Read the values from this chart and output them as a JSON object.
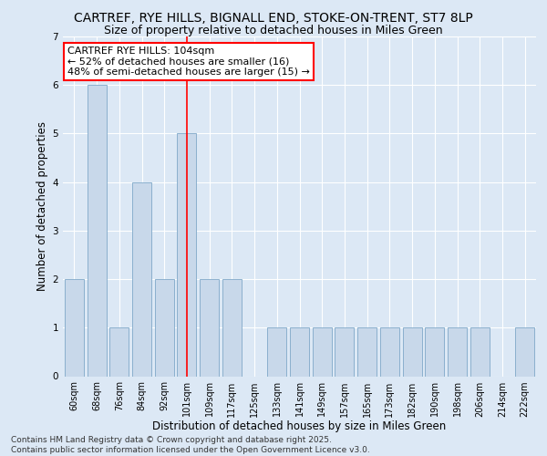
{
  "title_line1": "CARTREF, RYE HILLS, BIGNALL END, STOKE-ON-TRENT, ST7 8LP",
  "title_line2": "Size of property relative to detached houses in Miles Green",
  "xlabel": "Distribution of detached houses by size in Miles Green",
  "ylabel": "Number of detached properties",
  "categories": [
    "60sqm",
    "68sqm",
    "76sqm",
    "84sqm",
    "92sqm",
    "101sqm",
    "109sqm",
    "117sqm",
    "125sqm",
    "133sqm",
    "141sqm",
    "149sqm",
    "157sqm",
    "165sqm",
    "173sqm",
    "182sqm",
    "190sqm",
    "198sqm",
    "206sqm",
    "214sqm",
    "222sqm"
  ],
  "values": [
    2,
    6,
    1,
    4,
    2,
    5,
    2,
    2,
    0,
    1,
    1,
    1,
    1,
    1,
    1,
    1,
    1,
    1,
    1,
    0,
    1
  ],
  "bar_color": "#c8d8ea",
  "bar_edge_color": "#7fa8c8",
  "red_line_index": 5,
  "annotation_text": "CARTREF RYE HILLS: 104sqm\n← 52% of detached houses are smaller (16)\n48% of semi-detached houses are larger (15) →",
  "annotation_box_color": "white",
  "annotation_box_edge_color": "red",
  "ylim": [
    0,
    7
  ],
  "yticks": [
    0,
    1,
    2,
    3,
    4,
    5,
    6,
    7
  ],
  "footnote": "Contains HM Land Registry data © Crown copyright and database right 2025.\nContains public sector information licensed under the Open Government Licence v3.0.",
  "background_color": "#dce8f5",
  "grid_color": "white",
  "title_fontsize": 10,
  "subtitle_fontsize": 9,
  "axis_label_fontsize": 8.5,
  "tick_fontsize": 7,
  "annotation_fontsize": 8,
  "footnote_fontsize": 6.5
}
